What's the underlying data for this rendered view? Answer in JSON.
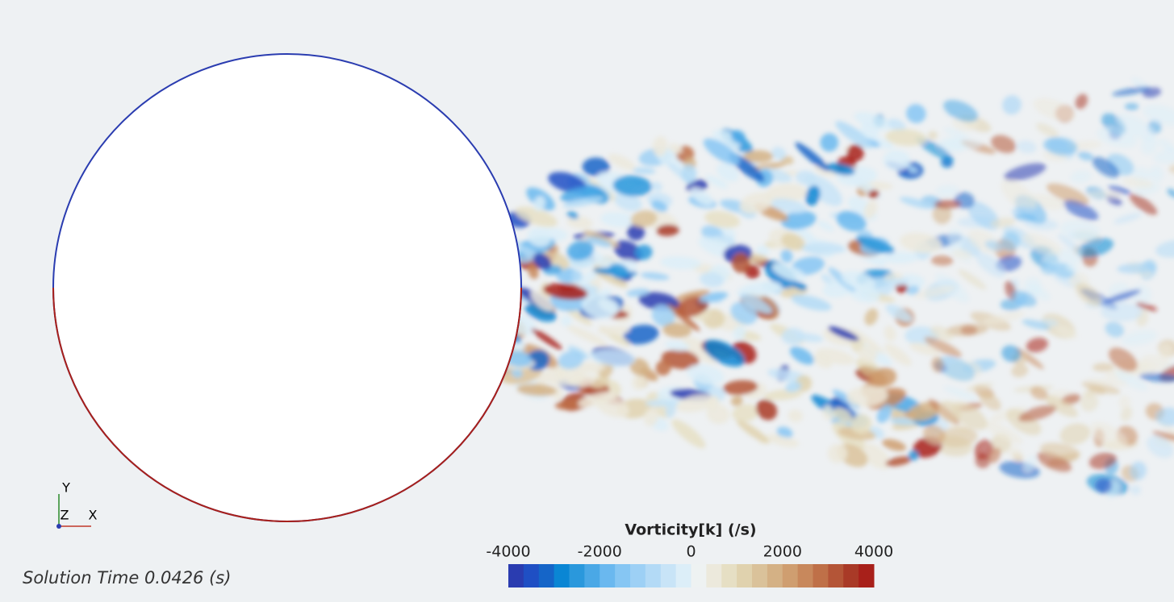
{
  "colorbar": {
    "title": "Vorticity[k] (/s)",
    "range": [
      -4000,
      4000
    ],
    "ticks": [
      -4000,
      -2000,
      0,
      2000,
      4000
    ],
    "colors": [
      "#2a3cb0",
      "#1f4fc4",
      "#1565c8",
      "#0a86d4",
      "#2a98dc",
      "#4aa8e6",
      "#6ab8ef",
      "#86c6f3",
      "#9dd0f5",
      "#b3daf6",
      "#c8e4f7",
      "#dceef8",
      "#eef2f2",
      "#ece9dc",
      "#e6dfc4",
      "#e0d2ae",
      "#dac29a",
      "#d4b185",
      "#cf9e70",
      "#c8885c",
      "#bf7048",
      "#b45537",
      "#a93a27",
      "#a8201a"
    ]
  },
  "solution_time": "Solution Time 0.0426 (s)",
  "axes_triad": {
    "y": "Y",
    "z": "Z",
    "x": "X"
  }
}
